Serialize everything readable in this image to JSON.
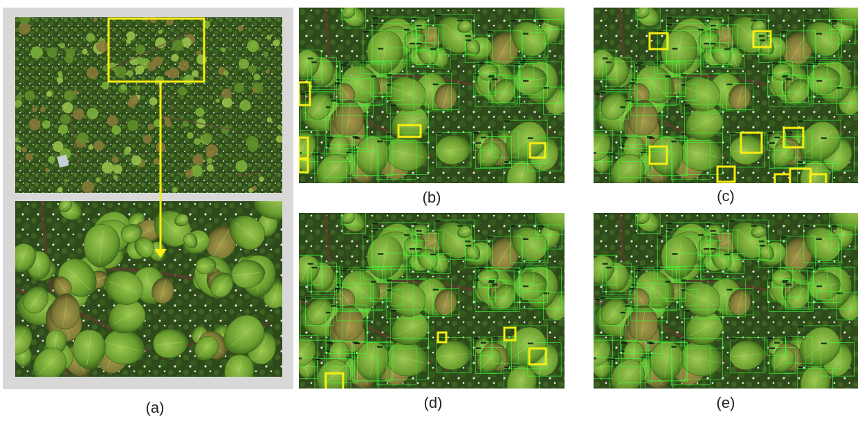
{
  "figure": {
    "panels": [
      {
        "id": "a",
        "label": "(a)"
      },
      {
        "id": "b",
        "label": "(b)"
      },
      {
        "id": "c",
        "label": "(c)"
      },
      {
        "id": "d",
        "label": "(d)"
      },
      {
        "id": "e",
        "label": "(e)"
      }
    ]
  },
  "colors": {
    "highlight": "#f7ee12",
    "detection": "#3cff3c",
    "frame": "#d8d8d8",
    "foliage_dark": "#2f4f1c",
    "foliage_mid": "#5d8f2c",
    "foliage_light": "#8dbd45"
  }
}
